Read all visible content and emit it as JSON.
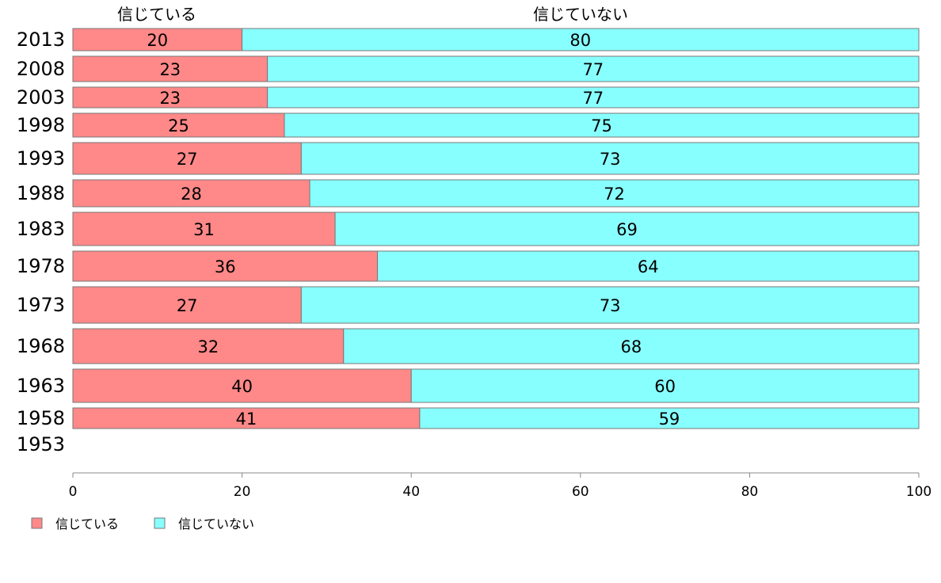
{
  "chart_data": {
    "type": "bar",
    "orientation": "horizontal",
    "stacked": true,
    "categories": [
      "2013",
      "2008",
      "2003",
      "1998",
      "1993",
      "1988",
      "1983",
      "1978",
      "1973",
      "1968",
      "1963",
      "1958",
      "1953"
    ],
    "series": [
      {
        "name": "信じている",
        "color": "#ff8888",
        "values": [
          20,
          23,
          23,
          25,
          27,
          28,
          31,
          36,
          27,
          32,
          40,
          41,
          null
        ]
      },
      {
        "name": "信じていない",
        "color": "#88ffff",
        "values": [
          80,
          77,
          77,
          75,
          73,
          72,
          69,
          64,
          73,
          68,
          60,
          59,
          null
        ]
      }
    ],
    "bar_widths": [
      28,
      32,
      26,
      30,
      40,
      34,
      42,
      38,
      46,
      44,
      42,
      26,
      0
    ],
    "column_headers": [
      "信じている",
      "信じていない"
    ],
    "xlim": [
      0,
      100
    ],
    "xticks": [
      "0",
      "20",
      "40",
      "60",
      "80",
      "100"
    ],
    "title": "",
    "xlabel": "",
    "ylabel": "",
    "grid": false,
    "legend": {
      "position": "bottom-left",
      "items": [
        "信じている",
        "信じていない"
      ]
    }
  }
}
